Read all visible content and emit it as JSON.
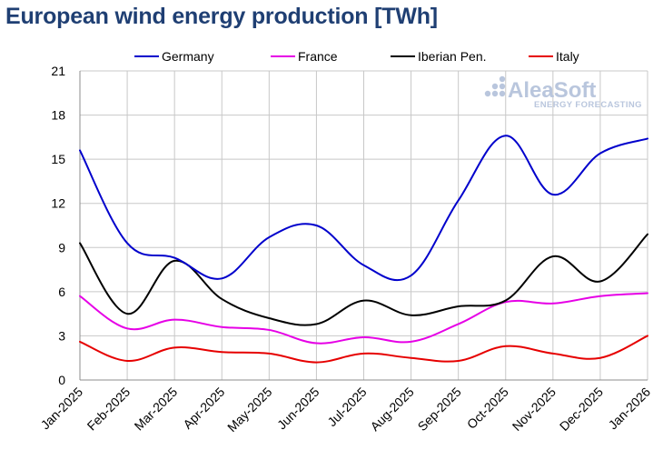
{
  "chart_data": {
    "type": "line",
    "title": "European wind energy production [TWh]",
    "xlabel": "",
    "ylabel": "",
    "categories": [
      "Jan-2025",
      "Feb-2025",
      "Mar-2025",
      "Apr-2025",
      "May-2025",
      "Jun-2025",
      "Jul-2025",
      "Aug-2025",
      "Sep-2025",
      "Oct-2025",
      "Nov-2025",
      "Dec-2025",
      "Jan-2026"
    ],
    "ylim": [
      0,
      21
    ],
    "yticks": [
      0,
      3,
      6,
      9,
      12,
      15,
      18,
      21
    ],
    "grid": true,
    "legend_position": "top",
    "series": [
      {
        "name": "Germany",
        "color": "#0000cc",
        "values": [
          15.6,
          9.3,
          8.3,
          6.9,
          9.7,
          10.5,
          7.8,
          7.1,
          12.2,
          16.6,
          12.6,
          15.4,
          16.4
        ]
      },
      {
        "name": "France",
        "color": "#e600e6",
        "values": [
          5.7,
          3.5,
          4.1,
          3.6,
          3.4,
          2.5,
          2.9,
          2.6,
          3.8,
          5.3,
          5.2,
          5.7,
          5.9
        ]
      },
      {
        "name": "Iberian Pen.",
        "color": "#000000",
        "values": [
          9.3,
          4.5,
          8.1,
          5.5,
          4.2,
          3.8,
          5.4,
          4.4,
          5.0,
          5.4,
          8.4,
          6.7,
          9.9
        ]
      },
      {
        "name": "Italy",
        "color": "#e60000",
        "values": [
          2.6,
          1.3,
          2.2,
          1.9,
          1.8,
          1.2,
          1.8,
          1.5,
          1.3,
          2.3,
          1.8,
          1.5,
          3.0
        ]
      }
    ]
  },
  "watermark": {
    "brand": "AleaSoft",
    "tagline": "ENERGY FORECASTING",
    "icon": "dots-logo-icon"
  }
}
